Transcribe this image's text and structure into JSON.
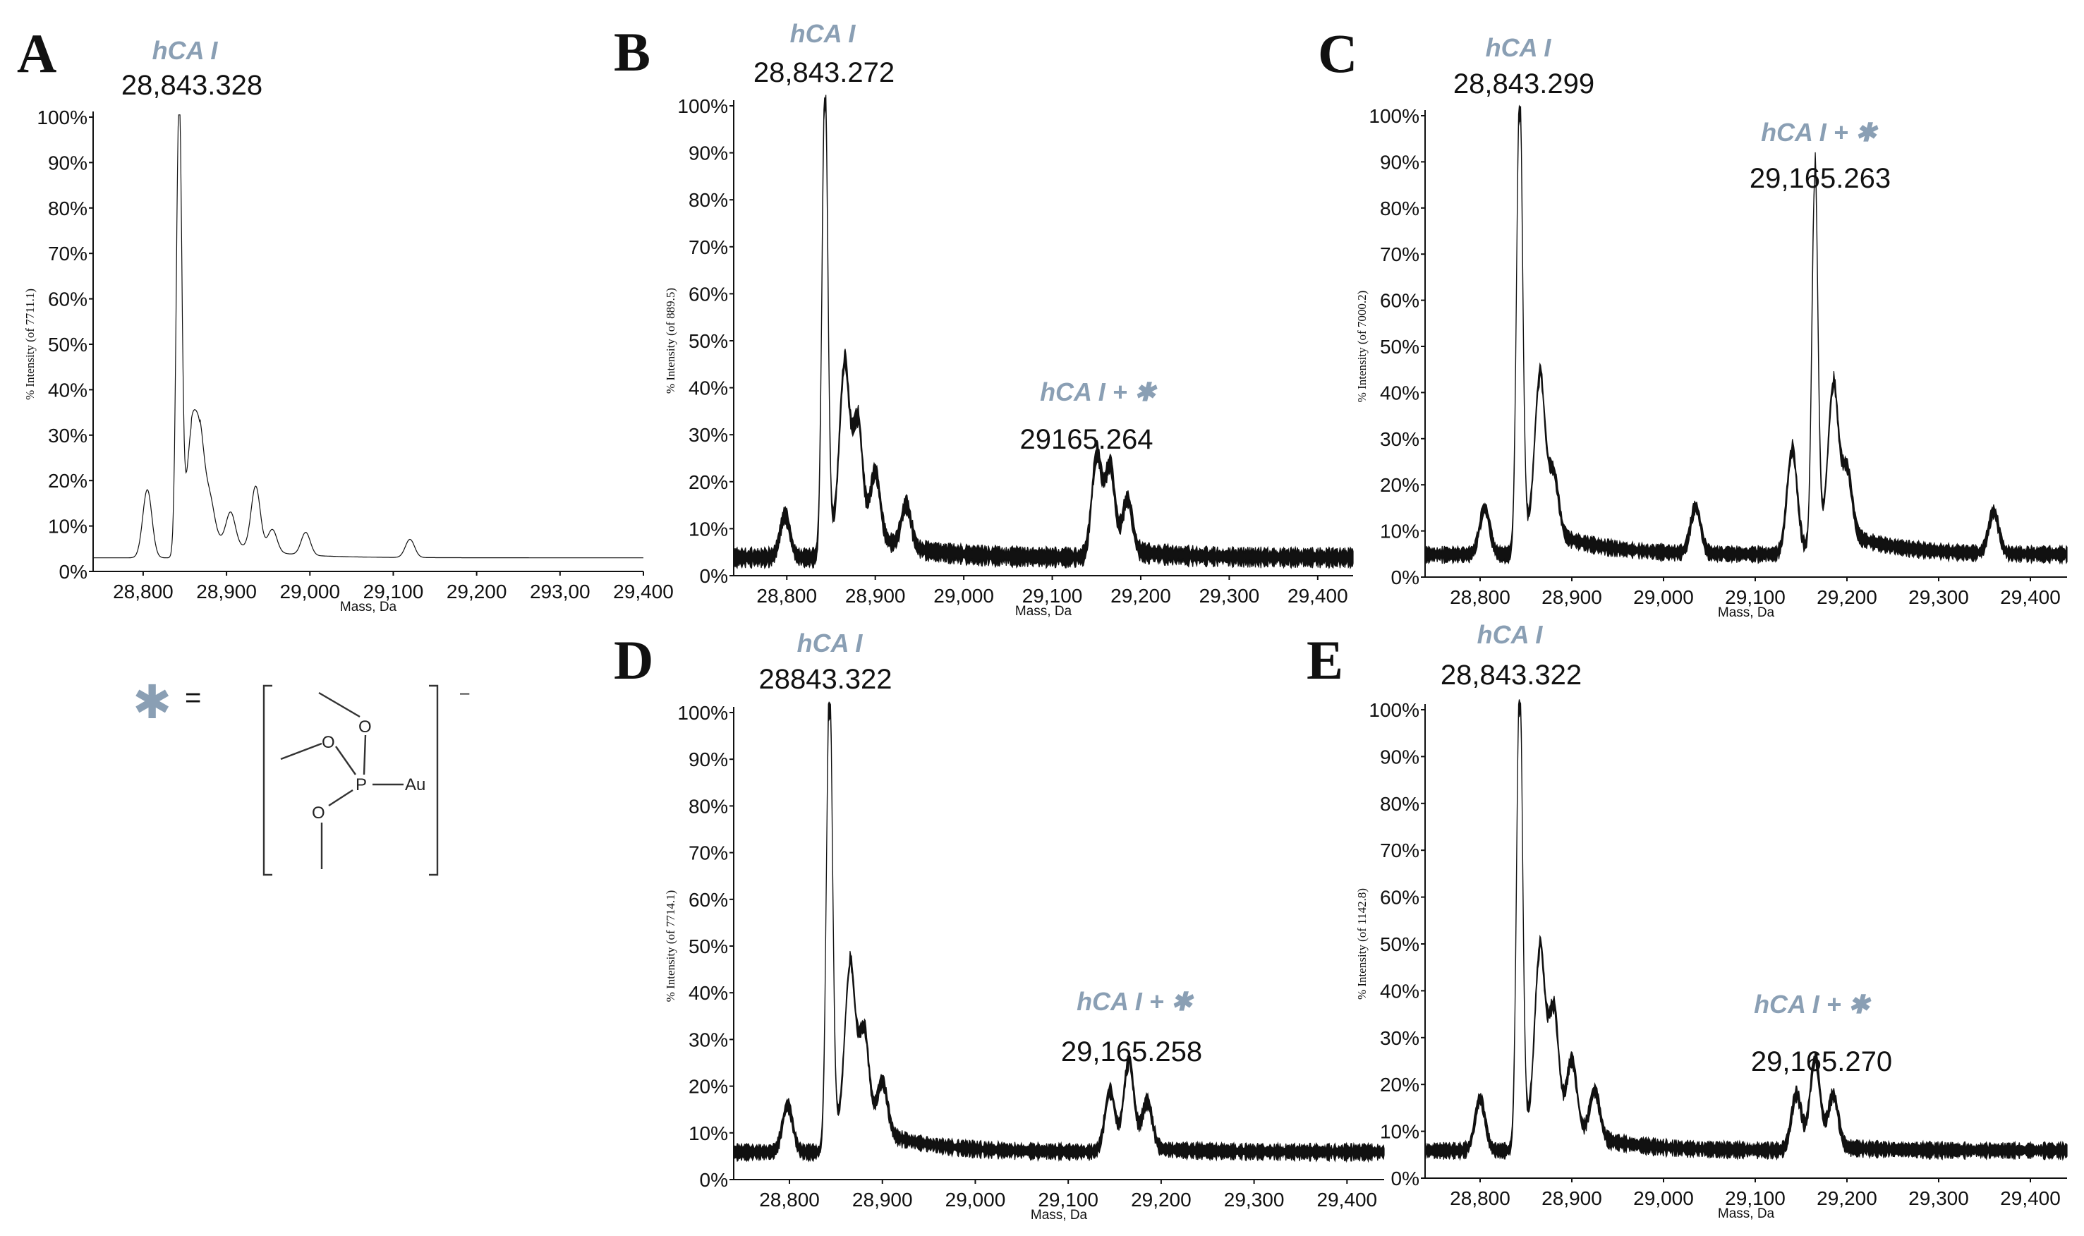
{
  "chart_data": [
    {
      "panel": "A",
      "type": "line",
      "xlabel": "Mass, Da",
      "ylabel": "% Intensity (of 7711.1)",
      "x_ticks": [
        "28,800",
        "28,900",
        "29,000",
        "29,100",
        "29,200",
        "293,00",
        "29,400"
      ],
      "y_ticks": [
        "0%",
        "10%",
        "20%",
        "30%",
        "40%",
        "50%",
        "60%",
        "70%",
        "80%",
        "90%",
        "100%"
      ],
      "xlim": [
        28740,
        29400
      ],
      "ylim": [
        0,
        100
      ],
      "noise": 0,
      "baseline": 3,
      "annotations": [
        {
          "species": "hCA I",
          "mass": "28,843.328"
        }
      ],
      "peaks": [
        {
          "x": 28805,
          "y": 15
        },
        {
          "x": 28843,
          "y": 100
        },
        {
          "x": 28858,
          "y": 21
        },
        {
          "x": 28868,
          "y": 20
        },
        {
          "x": 28880,
          "y": 8
        },
        {
          "x": 28905,
          "y": 7
        },
        {
          "x": 28935,
          "y": 14
        },
        {
          "x": 28955,
          "y": 5
        },
        {
          "x": 28995,
          "y": 5
        },
        {
          "x": 29120,
          "y": 4
        }
      ]
    },
    {
      "panel": "B",
      "type": "line",
      "xlabel": "Mass, Da",
      "ylabel": "% Intensity (of 889.5)",
      "x_ticks": [
        "28,800",
        "28,900",
        "29,000",
        "29,100",
        "29,200",
        "29,300",
        "29,400"
      ],
      "y_ticks": [
        "0%",
        "10%",
        "20%",
        "30%",
        "40%",
        "50%",
        "60%",
        "70%",
        "80%",
        "90%",
        "100%"
      ],
      "xlim": [
        28740,
        29440
      ],
      "ylim": [
        0,
        100
      ],
      "noise": 3,
      "baseline": 4,
      "annotations": [
        {
          "species": "hCA I",
          "mass": "28,843.272"
        },
        {
          "species": "hCA I + ✱",
          "mass": "29165.264"
        }
      ],
      "peaks": [
        {
          "x": 28798,
          "y": 9
        },
        {
          "x": 28843,
          "y": 100
        },
        {
          "x": 28865,
          "y": 36
        },
        {
          "x": 28880,
          "y": 24
        },
        {
          "x": 28900,
          "y": 14
        },
        {
          "x": 28935,
          "y": 9
        },
        {
          "x": 29150,
          "y": 21
        },
        {
          "x": 29165,
          "y": 18
        },
        {
          "x": 29185,
          "y": 11
        }
      ]
    },
    {
      "panel": "C",
      "type": "line",
      "xlabel": "Mass, Da",
      "ylabel": "% Intensity (of 7000.2)",
      "x_ticks": [
        "28,800",
        "28,900",
        "29,000",
        "29,100",
        "29,200",
        "29,300",
        "29,400"
      ],
      "y_ticks": [
        "0%",
        "10%",
        "20%",
        "30%",
        "40%",
        "50%",
        "60%",
        "70%",
        "80%",
        "90%",
        "100%"
      ],
      "xlim": [
        28740,
        29440
      ],
      "ylim": [
        0,
        100
      ],
      "noise": 2.5,
      "baseline": 5,
      "annotations": [
        {
          "species": "hCA I",
          "mass": "28,843.299"
        },
        {
          "species": "hCA I + ✱",
          "mass": "29,165.263"
        }
      ],
      "peaks": [
        {
          "x": 28805,
          "y": 10
        },
        {
          "x": 28843,
          "y": 100
        },
        {
          "x": 28865,
          "y": 34
        },
        {
          "x": 28880,
          "y": 13
        },
        {
          "x": 29035,
          "y": 10
        },
        {
          "x": 29140,
          "y": 22
        },
        {
          "x": 29165,
          "y": 81
        },
        {
          "x": 29185,
          "y": 32
        },
        {
          "x": 29200,
          "y": 14
        },
        {
          "x": 29360,
          "y": 9
        }
      ]
    },
    {
      "panel": "D",
      "type": "line",
      "xlabel": "Mass, Da",
      "ylabel": "% Intensity (of 7714.1)",
      "x_ticks": [
        "28,800",
        "28,900",
        "29,000",
        "29,100",
        "29,200",
        "29,300",
        "29,400"
      ],
      "y_ticks": [
        "0%",
        "10%",
        "20%",
        "30%",
        "40%",
        "50%",
        "60%",
        "70%",
        "80%",
        "90%",
        "100%"
      ],
      "xlim": [
        28740,
        29440
      ],
      "ylim": [
        0,
        100
      ],
      "noise": 2.5,
      "baseline": 6,
      "annotations": [
        {
          "species": "hCA I",
          "mass": "28843.322"
        },
        {
          "species": "hCA I + ✱",
          "mass": "29,165.258"
        }
      ],
      "peaks": [
        {
          "x": 28798,
          "y": 10
        },
        {
          "x": 28843,
          "y": 100
        },
        {
          "x": 28865,
          "y": 35
        },
        {
          "x": 28880,
          "y": 21
        },
        {
          "x": 28900,
          "y": 11
        },
        {
          "x": 29145,
          "y": 13
        },
        {
          "x": 29165,
          "y": 19
        },
        {
          "x": 29185,
          "y": 10
        }
      ]
    },
    {
      "panel": "E",
      "type": "line",
      "xlabel": "Mass, Da",
      "ylabel": "% Intensity (of 1142.8)",
      "x_ticks": [
        "28,800",
        "28,900",
        "29,000",
        "29,100",
        "29,200",
        "29,300",
        "29,400"
      ],
      "y_ticks": [
        "0%",
        "10%",
        "20%",
        "30%",
        "40%",
        "50%",
        "60%",
        "70%",
        "80%",
        "90%",
        "100%"
      ],
      "xlim": [
        28740,
        29440
      ],
      "ylim": [
        0,
        100
      ],
      "noise": 2.5,
      "baseline": 6,
      "annotations": [
        {
          "species": "hCA I",
          "mass": "28,843.322"
        },
        {
          "species": "hCA I + ✱",
          "mass": "29,165.270"
        }
      ],
      "peaks": [
        {
          "x": 28800,
          "y": 11
        },
        {
          "x": 28843,
          "y": 100
        },
        {
          "x": 28865,
          "y": 38
        },
        {
          "x": 28880,
          "y": 25
        },
        {
          "x": 28900,
          "y": 15
        },
        {
          "x": 28925,
          "y": 10
        },
        {
          "x": 29145,
          "y": 12
        },
        {
          "x": 29165,
          "y": 19
        },
        {
          "x": 29185,
          "y": 11
        }
      ]
    }
  ],
  "legend": {
    "symbol": "✱",
    "equals": "=",
    "structure_atoms": [
      "O",
      "O",
      "O",
      "P",
      "Au"
    ],
    "charge": "–"
  },
  "colors": {
    "annotation": "#8a9fb4",
    "trace": "#111111",
    "axis": "#111111"
  }
}
